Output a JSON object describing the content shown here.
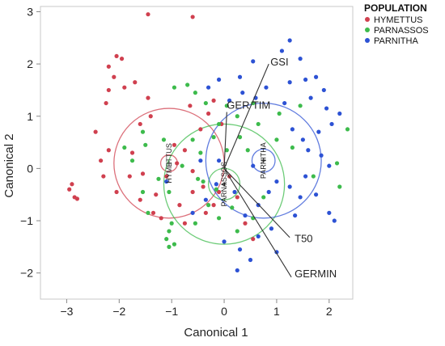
{
  "chart_data": {
    "type": "scatter",
    "xlabel": "Canonical 1",
    "ylabel": "Canonical 2",
    "xlim": [
      -3.5,
      2.45
    ],
    "ylim": [
      -2.5,
      3.1
    ],
    "xticks": [
      -3,
      -2,
      -1,
      0,
      1,
      2
    ],
    "xtick_labels": [
      "−3",
      "−2",
      "−1",
      "0",
      "1",
      "2"
    ],
    "yticks": [
      -2,
      -1,
      0,
      1,
      2,
      3
    ],
    "ytick_labels": [
      "−2",
      "−1",
      "0",
      "1",
      "2",
      "3"
    ],
    "grid": false,
    "legend": {
      "title": "POPULATION",
      "placement": "top-right outside",
      "entries": [
        {
          "label": "HYMETTUS",
          "color": "#d0404f"
        },
        {
          "label": "PARNASSOS",
          "color": "#3dbb4c"
        },
        {
          "label": "PARNITHA",
          "color": "#2d52d4"
        }
      ]
    },
    "vectors": [
      {
        "label": "GSI",
        "x": 0.85,
        "y": 2.0
      },
      {
        "label": "GER TIM",
        "x": 0.05,
        "y": 1.08
      },
      {
        "label": "T50",
        "x": 1.25,
        "y": -1.32
      },
      {
        "label": "GERMIN",
        "x": 1.28,
        "y": -2.08
      }
    ],
    "centroids": [
      {
        "label": "HYMETTUS",
        "x": -1.05,
        "y": 0.1,
        "inner_radius": 0.16,
        "outer_radius": 1.05,
        "color": "#d0404f"
      },
      {
        "label": "PARNASSOS",
        "x": 0.0,
        "y": -0.3,
        "inner_radius": 0.3,
        "outer_radius": 1.15,
        "color": "#3dbb4c"
      },
      {
        "label": "PARNITHA",
        "x": 0.75,
        "y": 0.15,
        "inner_radius": 0.22,
        "outer_radius": 1.1,
        "color": "#2d52d4"
      }
    ],
    "series": [
      {
        "name": "HYMETTUS",
        "color": "#d0404f",
        "points": [
          [
            -1.45,
            2.95
          ],
          [
            -0.6,
            2.9
          ],
          [
            -2.05,
            2.15
          ],
          [
            -1.95,
            2.1
          ],
          [
            -2.2,
            1.95
          ],
          [
            -2.1,
            1.75
          ],
          [
            -1.9,
            1.55
          ],
          [
            -2.2,
            1.5
          ],
          [
            -1.7,
            1.65
          ],
          [
            -1.45,
            1.35
          ],
          [
            -2.25,
            1.25
          ],
          [
            -1.4,
            1.0
          ],
          [
            -0.65,
            1.2
          ],
          [
            -0.2,
            1.3
          ],
          [
            -2.45,
            0.7
          ],
          [
            -2.2,
            0.35
          ],
          [
            -1.75,
            0.3
          ],
          [
            -2.35,
            0.15
          ],
          [
            -2.3,
            -0.15
          ],
          [
            -2.05,
            -0.45
          ],
          [
            -2.9,
            -0.3
          ],
          [
            -2.95,
            -0.4
          ],
          [
            -2.85,
            -0.55
          ],
          [
            -2.8,
            -0.58
          ],
          [
            -1.6,
            -0.6
          ],
          [
            -1.3,
            -0.5
          ],
          [
            -1.2,
            -0.95
          ],
          [
            -1.35,
            -0.85
          ],
          [
            -1.8,
            -0.15
          ],
          [
            -1.55,
            -0.1
          ],
          [
            -0.95,
            0.45
          ],
          [
            -0.75,
            0.35
          ],
          [
            -0.9,
            0.1
          ],
          [
            -0.6,
            -0.05
          ],
          [
            -0.6,
            -0.45
          ],
          [
            -0.4,
            -0.35
          ],
          [
            -0.85,
            -0.7
          ],
          [
            -0.35,
            -0.85
          ],
          [
            -0.2,
            -0.7
          ],
          [
            -0.1,
            -0.45
          ],
          [
            0.1,
            -0.15
          ],
          [
            0.25,
            -0.55
          ],
          [
            0.4,
            -1.05
          ],
          [
            0.55,
            -1.35
          ],
          [
            -0.3,
            1.05
          ],
          [
            -0.05,
            0.85
          ],
          [
            -0.45,
            0.75
          ],
          [
            -1.1,
            -0.15
          ],
          [
            -1.6,
            0.85
          ],
          [
            -0.75,
            -1.05
          ]
        ]
      },
      {
        "name": "PARNASSOS",
        "color": "#3dbb4c",
        "points": [
          [
            -0.95,
            1.55
          ],
          [
            -0.7,
            1.6
          ],
          [
            -0.55,
            1.45
          ],
          [
            -0.35,
            1.25
          ],
          [
            0.05,
            1.2
          ],
          [
            0.25,
            1.0
          ],
          [
            -0.1,
            0.85
          ],
          [
            -0.2,
            0.6
          ],
          [
            -0.6,
            0.55
          ],
          [
            -0.45,
            0.3
          ],
          [
            -0.8,
            0.05
          ],
          [
            -0.5,
            -0.2
          ],
          [
            -1.05,
            -0.45
          ],
          [
            -1.25,
            -0.2
          ],
          [
            -1.55,
            0.7
          ],
          [
            -1.5,
            0.45
          ],
          [
            -1.9,
            0.4
          ],
          [
            -1.75,
            0.15
          ],
          [
            -1.15,
            0.55
          ],
          [
            -1.55,
            -0.45
          ],
          [
            -1.45,
            -0.85
          ],
          [
            -1.0,
            -1.05
          ],
          [
            -1.05,
            -1.2
          ],
          [
            -1.1,
            -1.35
          ],
          [
            -0.95,
            -1.45
          ],
          [
            -1.05,
            -1.5
          ],
          [
            -0.55,
            -1.05
          ],
          [
            -0.3,
            -0.7
          ],
          [
            -0.15,
            -0.4
          ],
          [
            0.15,
            -0.75
          ],
          [
            0.25,
            -1.2
          ],
          [
            0.55,
            -0.95
          ],
          [
            0.75,
            -0.55
          ],
          [
            0.45,
            0.35
          ],
          [
            0.3,
            0.6
          ],
          [
            0.65,
            0.85
          ],
          [
            1.0,
            0.55
          ],
          [
            0.55,
            1.25
          ],
          [
            1.3,
            0.4
          ],
          [
            1.7,
            -0.15
          ],
          [
            2.15,
            0.1
          ],
          [
            2.2,
            -0.35
          ],
          [
            1.45,
            1.2
          ],
          [
            1.05,
            1.05
          ],
          [
            2.35,
            0.75
          ],
          [
            -0.1,
            -0.95
          ],
          [
            -0.4,
            -0.25
          ],
          [
            0.05,
            0.35
          ]
        ]
      },
      {
        "name": "PARNITHA",
        "color": "#2d52d4",
        "points": [
          [
            1.1,
            2.25
          ],
          [
            1.25,
            2.45
          ],
          [
            1.45,
            2.1
          ],
          [
            1.75,
            1.75
          ],
          [
            1.55,
            1.7
          ],
          [
            1.25,
            1.65
          ],
          [
            0.8,
            1.55
          ],
          [
            1.65,
            1.35
          ],
          [
            1.95,
            1.15
          ],
          [
            2.2,
            1.05
          ],
          [
            2.05,
            0.85
          ],
          [
            1.8,
            0.7
          ],
          [
            1.5,
            0.55
          ],
          [
            1.3,
            0.75
          ],
          [
            1.15,
            1.25
          ],
          [
            0.6,
            1.35
          ],
          [
            0.35,
            1.45
          ],
          [
            0.1,
            1.3
          ],
          [
            0.3,
            1.75
          ],
          [
            -0.1,
            1.7
          ],
          [
            -0.3,
            1.55
          ],
          [
            1.6,
            0.35
          ],
          [
            1.85,
            0.25
          ],
          [
            2.0,
            0.05
          ],
          [
            1.55,
            -0.15
          ],
          [
            1.25,
            -0.35
          ],
          [
            1.0,
            -0.25
          ],
          [
            0.85,
            -0.45
          ],
          [
            0.65,
            -0.7
          ],
          [
            0.4,
            -0.9
          ],
          [
            0.2,
            -0.45
          ],
          [
            -0.15,
            -0.3
          ],
          [
            -0.35,
            -0.6
          ],
          [
            -0.6,
            -0.85
          ],
          [
            -1.1,
            -0.25
          ],
          [
            -0.45,
            0.15
          ],
          [
            -0.1,
            0.15
          ],
          [
            0.55,
            0.05
          ],
          [
            1.45,
            -0.55
          ],
          [
            1.75,
            -0.5
          ],
          [
            2.0,
            -0.85
          ],
          [
            2.1,
            -1.0
          ],
          [
            1.35,
            -0.9
          ],
          [
            0.9,
            -1.15
          ],
          [
            0.65,
            -1.3
          ],
          [
            0.3,
            -1.55
          ],
          [
            0.0,
            -1.4
          ],
          [
            0.25,
            -1.95
          ],
          [
            0.5,
            -1.75
          ],
          [
            1.0,
            -1.6
          ],
          [
            0.55,
            2.05
          ],
          [
            1.9,
            1.5
          ]
        ]
      }
    ]
  }
}
